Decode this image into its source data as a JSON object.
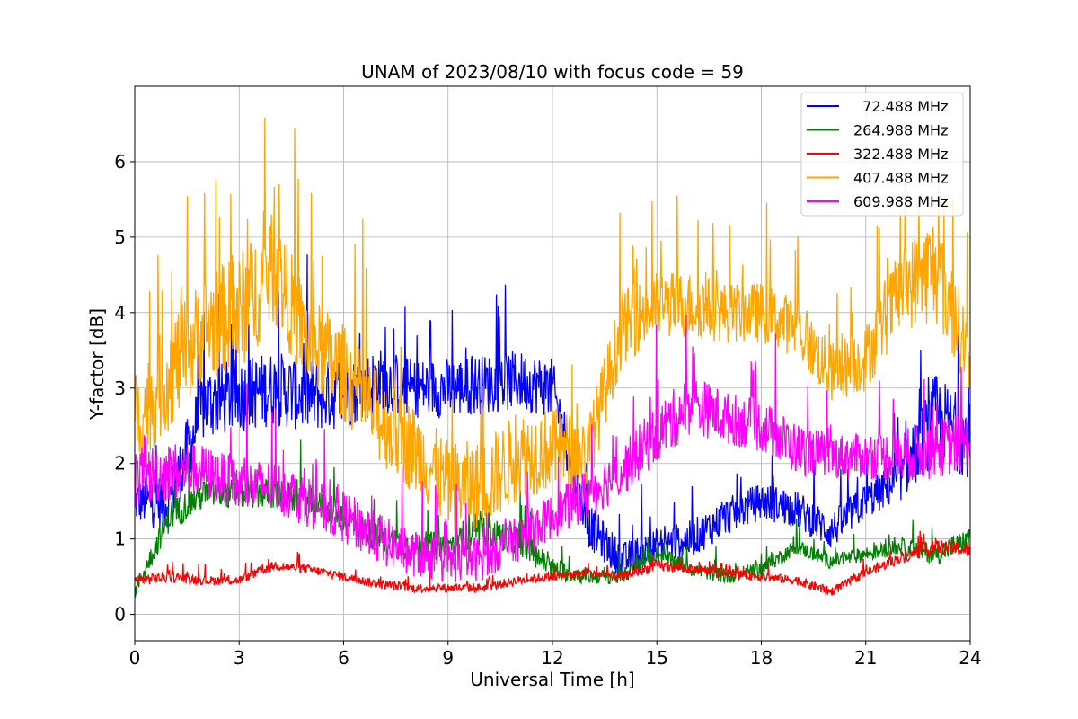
{
  "chart_data": {
    "type": "line",
    "title": "UNAM of 2023/08/10 with focus code = 59",
    "xlabel": "Universal Time [h]",
    "ylabel": "Y-factor [dB]",
    "xlim": [
      0,
      24
    ],
    "ylim": [
      -0.35,
      7.0
    ],
    "x_ticks": [
      0,
      3,
      6,
      9,
      12,
      15,
      18,
      21,
      24
    ],
    "x_tick_labels": [
      "0",
      "3",
      "6",
      "9",
      "12",
      "15",
      "18",
      "21",
      "24"
    ],
    "y_ticks": [
      0,
      1,
      2,
      3,
      4,
      5,
      6
    ],
    "y_tick_labels": [
      "0",
      "1",
      "2",
      "3",
      "4",
      "5",
      "6"
    ],
    "grid": true,
    "legend_position": "top-right",
    "x": [
      0,
      1,
      2,
      3,
      4,
      5,
      6,
      7,
      8,
      9,
      10,
      11,
      12,
      13,
      14,
      15,
      16,
      17,
      18,
      19,
      20,
      21,
      22,
      23,
      24
    ],
    "series": [
      {
        "name": "  72.488 MHz",
        "color": "#0000ff",
        "center": [
          1.5,
          1.5,
          2.8,
          2.9,
          3.0,
          2.9,
          2.9,
          3.1,
          3.0,
          3.0,
          3.05,
          3.1,
          3.0,
          1.2,
          0.7,
          0.9,
          1.0,
          1.3,
          1.5,
          1.4,
          1.1,
          1.5,
          1.8,
          2.6,
          2.3
        ],
        "amplitude": [
          0.6,
          0.8,
          1.0,
          1.0,
          1.0,
          1.0,
          0.9,
          0.9,
          0.8,
          0.8,
          0.8,
          0.8,
          0.8,
          0.6,
          0.5,
          0.5,
          0.5,
          0.5,
          0.5,
          0.5,
          0.5,
          0.5,
          0.6,
          1.2,
          1.0
        ]
      },
      {
        "name": "264.988 MHz",
        "color": "#008000",
        "center": [
          0.3,
          1.3,
          1.6,
          1.6,
          1.6,
          1.5,
          1.3,
          1.0,
          0.9,
          0.9,
          1.1,
          1.0,
          0.6,
          0.5,
          0.5,
          0.8,
          0.6,
          0.5,
          0.6,
          0.9,
          0.7,
          0.8,
          0.9,
          0.8,
          1.0
        ],
        "amplitude": [
          0.2,
          0.4,
          0.4,
          0.4,
          0.4,
          0.4,
          0.4,
          0.4,
          0.4,
          0.4,
          0.4,
          0.4,
          0.3,
          0.2,
          0.2,
          0.2,
          0.2,
          0.2,
          0.2,
          0.2,
          0.2,
          0.2,
          0.2,
          0.3,
          0.3
        ]
      },
      {
        "name": "322.488 MHz",
        "color": "#ff0000",
        "center": [
          0.45,
          0.5,
          0.45,
          0.45,
          0.65,
          0.6,
          0.5,
          0.4,
          0.35,
          0.35,
          0.35,
          0.45,
          0.5,
          0.55,
          0.5,
          0.65,
          0.6,
          0.55,
          0.5,
          0.45,
          0.3,
          0.55,
          0.75,
          0.9,
          0.85
        ],
        "amplitude": [
          0.15,
          0.15,
          0.12,
          0.12,
          0.12,
          0.12,
          0.12,
          0.12,
          0.12,
          0.12,
          0.12,
          0.12,
          0.12,
          0.12,
          0.12,
          0.15,
          0.12,
          0.12,
          0.12,
          0.12,
          0.12,
          0.12,
          0.15,
          0.2,
          0.2
        ]
      },
      {
        "name": "407.488 MHz",
        "color": "#ffa500",
        "center": [
          2.5,
          3.2,
          3.8,
          4.0,
          4.6,
          3.6,
          3.2,
          2.6,
          2.2,
          1.7,
          1.7,
          2.1,
          2.2,
          2.1,
          3.8,
          4.1,
          4.1,
          4.0,
          4.0,
          3.8,
          3.2,
          3.4,
          4.3,
          4.6,
          3.4
        ],
        "amplitude": [
          1.2,
          1.5,
          1.4,
          1.6,
          1.5,
          1.3,
          1.3,
          1.2,
          1.2,
          1.2,
          1.2,
          1.2,
          1.1,
          1.0,
          1.0,
          0.9,
          0.9,
          0.8,
          0.8,
          0.8,
          0.8,
          0.9,
          1.1,
          1.5,
          1.0
        ]
      },
      {
        "name": "609.988 MHz",
        "color": "#ff00ff",
        "center": [
          1.8,
          1.9,
          1.9,
          1.7,
          1.7,
          1.5,
          1.3,
          1.0,
          0.8,
          0.7,
          0.75,
          1.0,
          1.3,
          1.6,
          1.9,
          2.4,
          2.8,
          2.6,
          2.5,
          2.2,
          2.1,
          2.1,
          2.1,
          2.2,
          2.3
        ],
        "amplitude": [
          0.8,
          0.8,
          0.7,
          0.7,
          0.7,
          0.7,
          0.7,
          0.7,
          0.6,
          0.6,
          0.6,
          0.6,
          0.6,
          0.7,
          0.7,
          0.8,
          0.8,
          0.7,
          0.7,
          0.7,
          0.6,
          0.6,
          0.7,
          0.8,
          0.8
        ]
      }
    ]
  }
}
